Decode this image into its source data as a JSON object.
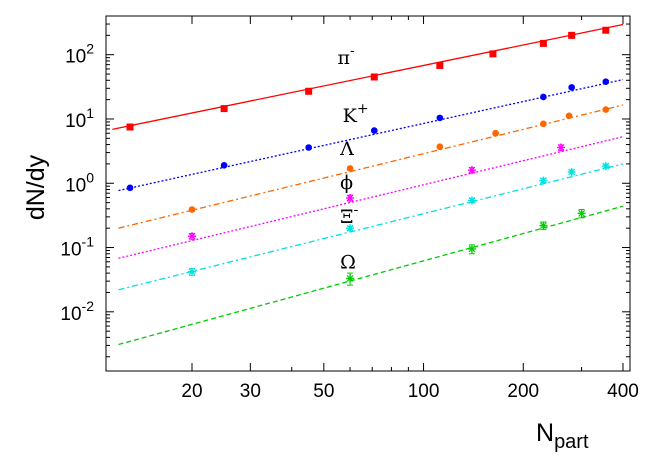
{
  "chart_data": {
    "type": "scatter",
    "xlabel_main": "N",
    "xlabel_sub": "part",
    "ylabel": "dN/dy",
    "xscale": "log",
    "yscale": "log",
    "xlim": [
      11,
      420
    ],
    "ylim": [
      0.0012,
      400
    ],
    "grid": false,
    "legend": "none",
    "x_ticks": [
      20,
      30,
      50,
      100,
      200,
      400
    ],
    "y_ticks": [
      {
        "value": 0.01,
        "base": "10",
        "exp": "-2"
      },
      {
        "value": 0.1,
        "base": "10",
        "exp": "-1"
      },
      {
        "value": 1,
        "base": "10",
        "exp": "0"
      },
      {
        "value": 10,
        "base": "10",
        "exp": "1"
      },
      {
        "value": 100,
        "base": "10",
        "exp": "2"
      }
    ],
    "series": [
      {
        "name": "π",
        "sup": "-",
        "label_at": [
          55,
          72
        ],
        "color": "#ff0000",
        "marker": "square",
        "line_style": "solid",
        "x": [
          13,
          25,
          45,
          71,
          112,
          162,
          230,
          280,
          355
        ],
        "y": [
          7.5,
          14.5,
          27,
          45,
          68,
          103,
          150,
          200,
          240
        ],
        "errors": [
          0.3,
          0.6,
          1.0,
          1.7,
          2.5,
          4.0,
          6.0,
          8.0,
          10.0
        ],
        "fit": [
          [
            11.5,
            6.9
          ],
          [
            400,
            295
          ]
        ]
      },
      {
        "name": "K",
        "sup": "+",
        "label_at": [
          57,
          9
        ],
        "color": "#0000ff",
        "marker": "circle",
        "line_style": "dotted",
        "x": [
          13,
          25,
          45,
          71,
          112,
          230,
          280,
          355
        ],
        "y": [
          0.85,
          1.9,
          3.6,
          6.6,
          10.4,
          22,
          31,
          38
        ],
        "errors": [
          0.04,
          0.08,
          0.15,
          0.25,
          0.4,
          0.9,
          1.3,
          1.6
        ],
        "fit": [
          [
            12,
            0.77
          ],
          [
            400,
            41
          ]
        ]
      },
      {
        "name": "Λ",
        "sup": "",
        "label_at": [
          56,
          2.75
        ],
        "color": "#ff6600",
        "marker": "circle",
        "line_style": "dash-dot",
        "x": [
          20,
          60,
          112,
          165,
          230,
          275,
          355
        ],
        "y": [
          0.39,
          1.7,
          3.7,
          6.0,
          8.4,
          11.2,
          14.0
        ],
        "errors": [
          0.02,
          0.07,
          0.15,
          0.25,
          0.35,
          0.45,
          0.6
        ],
        "fit": [
          [
            12,
            0.2
          ],
          [
            400,
            16.5
          ]
        ]
      },
      {
        "name": "ϕ",
        "sup": "",
        "label_at": [
          56,
          0.82
        ],
        "color": "#ff00ff",
        "marker": "star",
        "line_style": "dotted",
        "x": [
          20,
          60,
          140,
          260
        ],
        "y": [
          0.15,
          0.59,
          1.6,
          3.6
        ],
        "errors": [
          0.015,
          0.06,
          0.15,
          0.35
        ],
        "fit": [
          [
            12,
            0.068
          ],
          [
            400,
            5.3
          ]
        ]
      },
      {
        "name": "Ξ",
        "sup": "-",
        "label_at": [
          56,
          0.24
        ],
        "color": "#00e0e0",
        "marker": "star",
        "line_style": "dash-dot",
        "x": [
          20,
          60,
          140,
          230,
          280,
          355
        ],
        "y": [
          0.042,
          0.2,
          0.54,
          1.1,
          1.5,
          1.85
        ],
        "errors": [
          0.005,
          0.015,
          0.04,
          0.08,
          0.1,
          0.13
        ],
        "fit": [
          [
            12,
            0.022
          ],
          [
            400,
            2.0
          ]
        ]
      },
      {
        "name": "Ω",
        "sup": "",
        "label_at": [
          56,
          0.047
        ],
        "color": "#00cc00",
        "marker": "star",
        "line_style": "dashed",
        "x": [
          60,
          140,
          230,
          300
        ],
        "y": [
          0.033,
          0.095,
          0.22,
          0.34
        ],
        "errors": [
          0.007,
          0.015,
          0.03,
          0.05
        ],
        "fit": [
          [
            12,
            0.0031
          ],
          [
            400,
            0.44
          ]
        ]
      }
    ]
  }
}
